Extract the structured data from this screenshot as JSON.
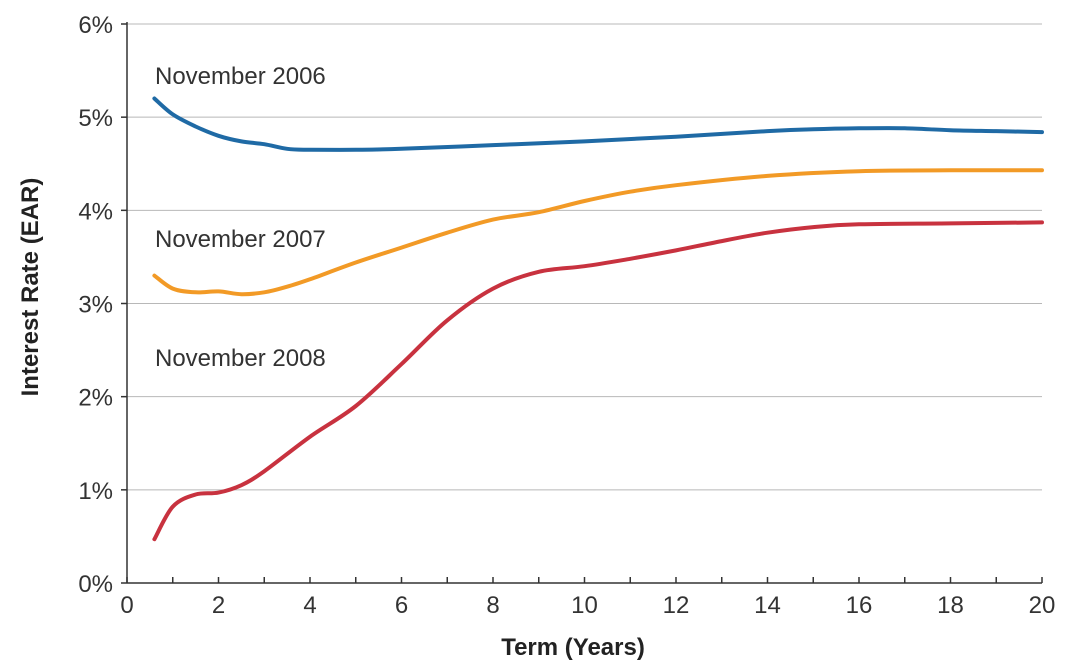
{
  "chart_data": {
    "type": "line",
    "xlabel": "Term (Years)",
    "ylabel": "Interest Rate (EAR)",
    "xlim": [
      0,
      20
    ],
    "ylim": [
      0,
      6
    ],
    "x_ticks": [
      "0",
      "2",
      "4",
      "6",
      "8",
      "10",
      "12",
      "14",
      "16",
      "18",
      "20"
    ],
    "y_ticks": [
      "0%",
      "1%",
      "2%",
      "3%",
      "4%",
      "5%",
      "6%"
    ],
    "grid": "horizontal",
    "series": [
      {
        "name": "November 2006",
        "color": "#1f6aa5",
        "points": [
          [
            0.6,
            5.2
          ],
          [
            1,
            5.03
          ],
          [
            1.5,
            4.9
          ],
          [
            2,
            4.8
          ],
          [
            2.5,
            4.74
          ],
          [
            3,
            4.71
          ],
          [
            3.5,
            4.66
          ],
          [
            4,
            4.65
          ],
          [
            5,
            4.65
          ],
          [
            6,
            4.66
          ],
          [
            8,
            4.7
          ],
          [
            10,
            4.74
          ],
          [
            12,
            4.79
          ],
          [
            14,
            4.85
          ],
          [
            15,
            4.87
          ],
          [
            16,
            4.88
          ],
          [
            17,
            4.88
          ],
          [
            18,
            4.86
          ],
          [
            19,
            4.85
          ],
          [
            20,
            4.84
          ]
        ]
      },
      {
        "name": "November 2007",
        "color": "#f29a26",
        "points": [
          [
            0.6,
            3.3
          ],
          [
            1,
            3.16
          ],
          [
            1.5,
            3.12
          ],
          [
            2,
            3.13
          ],
          [
            2.5,
            3.1
          ],
          [
            3,
            3.12
          ],
          [
            3.5,
            3.18
          ],
          [
            4,
            3.26
          ],
          [
            5,
            3.44
          ],
          [
            6,
            3.6
          ],
          [
            7,
            3.76
          ],
          [
            8,
            3.9
          ],
          [
            9,
            3.98
          ],
          [
            10,
            4.1
          ],
          [
            11,
            4.2
          ],
          [
            12,
            4.27
          ],
          [
            14,
            4.37
          ],
          [
            16,
            4.42
          ],
          [
            18,
            4.43
          ],
          [
            20,
            4.43
          ]
        ]
      },
      {
        "name": "November 2008",
        "color": "#c8323f",
        "points": [
          [
            0.6,
            0.47
          ],
          [
            1,
            0.82
          ],
          [
            1.5,
            0.95
          ],
          [
            2,
            0.97
          ],
          [
            2.5,
            1.05
          ],
          [
            3,
            1.2
          ],
          [
            4,
            1.57
          ],
          [
            5,
            1.9
          ],
          [
            6,
            2.35
          ],
          [
            7,
            2.82
          ],
          [
            8,
            3.16
          ],
          [
            9,
            3.34
          ],
          [
            10,
            3.4
          ],
          [
            11,
            3.48
          ],
          [
            12,
            3.57
          ],
          [
            13,
            3.67
          ],
          [
            14,
            3.76
          ],
          [
            15,
            3.82
          ],
          [
            16,
            3.85
          ],
          [
            18,
            3.86
          ],
          [
            20,
            3.87
          ]
        ]
      }
    ]
  }
}
